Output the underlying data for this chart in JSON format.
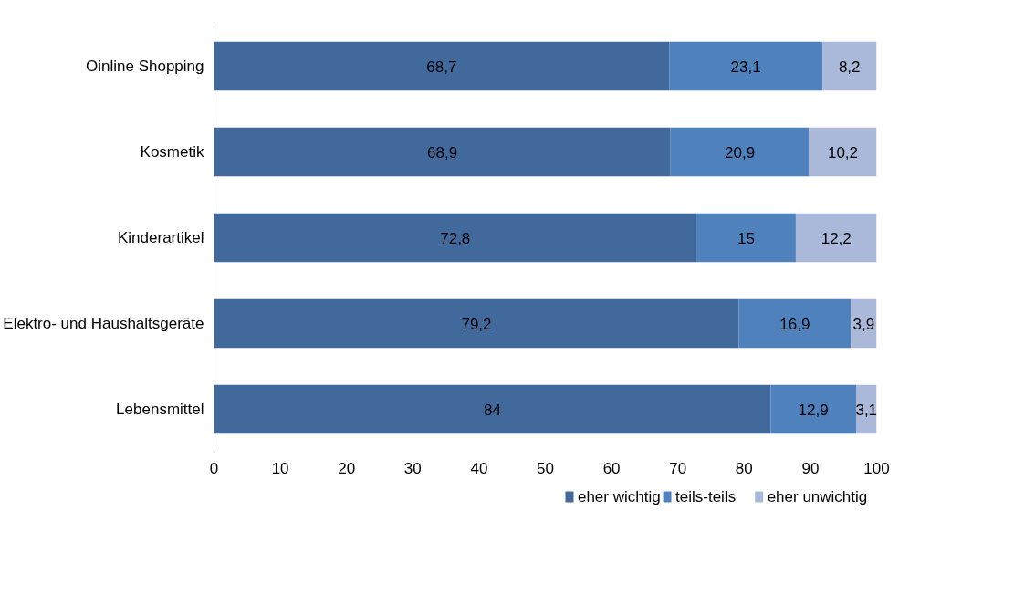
{
  "chart_data": {
    "type": "bar",
    "orientation": "horizontal",
    "stacked": true,
    "categories": [
      "Oinline Shopping",
      "Kosmetik",
      "Kinderartikel",
      "Elektro- und Haushaltsgeräte",
      "Lebensmittel"
    ],
    "series": [
      {
        "name": "eher wichtig",
        "color": "#41699c",
        "values": [
          68.7,
          68.9,
          72.8,
          79.2,
          84
        ],
        "value_labels": [
          "68,7",
          "68,9",
          "72,8",
          "79,2",
          "84"
        ]
      },
      {
        "name": "teils-teils",
        "color": "#4f81bd",
        "values": [
          23.1,
          20.9,
          15,
          16.9,
          12.9
        ],
        "value_labels": [
          "23,1",
          "20,9",
          "15",
          "16,9",
          "12,9"
        ]
      },
      {
        "name": "eher unwichtig",
        "color": "#aab9d9",
        "values": [
          8.2,
          10.2,
          12.2,
          3.9,
          3.1
        ],
        "value_labels": [
          "8,2",
          "10,2",
          "12,2",
          "3,9",
          "3,1"
        ]
      }
    ],
    "xlim": [
      0,
      100
    ],
    "xticks": [
      0,
      10,
      20,
      30,
      40,
      50,
      60,
      70,
      80,
      90,
      100
    ],
    "grid": false,
    "legend": "bottom"
  }
}
